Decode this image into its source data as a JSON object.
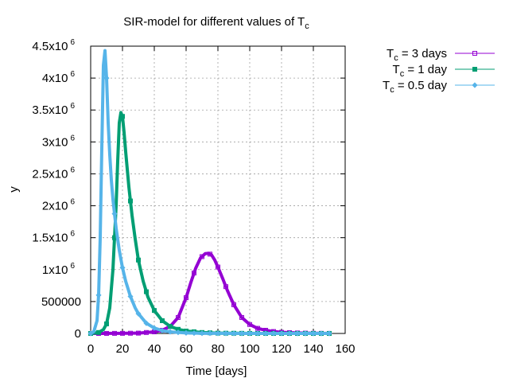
{
  "chart_data": {
    "type": "line",
    "title": "SIR-model for different values of T",
    "title_subscript": "c",
    "xlabel": "Time [days]",
    "ylabel": "y",
    "xlim": [
      0,
      160
    ],
    "ylim": [
      0,
      4500000
    ],
    "x_ticks": [
      0,
      20,
      40,
      60,
      80,
      100,
      120,
      140,
      160
    ],
    "y_ticks": [
      {
        "value": 0,
        "label": "0",
        "exp": ""
      },
      {
        "value": 500000,
        "label": "500000",
        "exp": ""
      },
      {
        "value": 1000000,
        "label": "1x10",
        "exp": "6"
      },
      {
        "value": 1500000,
        "label": "1.5x10",
        "exp": "6"
      },
      {
        "value": 2000000,
        "label": "2x10",
        "exp": "6"
      },
      {
        "value": 2500000,
        "label": "2.5x10",
        "exp": "6"
      },
      {
        "value": 3000000,
        "label": "3x10",
        "exp": "6"
      },
      {
        "value": 3500000,
        "label": "3.5x10",
        "exp": "6"
      },
      {
        "value": 4000000,
        "label": "4x10",
        "exp": "6"
      },
      {
        "value": 4500000,
        "label": "4.5x10",
        "exp": "6"
      }
    ],
    "grid": true,
    "legend_position": "outside-top-right",
    "series": [
      {
        "name_prefix": "T",
        "name_sub": "c",
        "name_suffix": " = 3 days",
        "color": "#9400d3",
        "marker": "square-open",
        "x": [
          0,
          10,
          20,
          30,
          40,
          45,
          50,
          55,
          60,
          63,
          66,
          69,
          72,
          74,
          76,
          78,
          80,
          83,
          86,
          90,
          95,
          100,
          105,
          110,
          115,
          120,
          130,
          140,
          150
        ],
        "y": [
          0,
          1000,
          2000,
          5000,
          25000,
          50000,
          110000,
          250000,
          560000,
          800000,
          1020000,
          1180000,
          1250000,
          1255000,
          1230000,
          1150000,
          1040000,
          860000,
          670000,
          450000,
          250000,
          140000,
          80000,
          50000,
          30000,
          18000,
          8000,
          3000,
          1000
        ]
      },
      {
        "name_prefix": "T",
        "name_sub": "c",
        "name_suffix": " = 1 day",
        "color": "#009e73",
        "marker": "square-filled",
        "x": [
          0,
          5,
          8,
          10,
          12,
          14,
          16,
          17,
          18,
          19,
          20,
          21,
          22,
          24,
          26,
          28,
          30,
          33,
          36,
          40,
          45,
          50,
          55,
          60,
          70,
          80,
          100,
          120,
          150
        ],
        "y": [
          0,
          15000,
          60000,
          150000,
          400000,
          1000000,
          2000000,
          2700000,
          3300000,
          3460000,
          3400000,
          3150000,
          2850000,
          2300000,
          1850000,
          1480000,
          1150000,
          820000,
          570000,
          360000,
          200000,
          110000,
          65000,
          38000,
          15000,
          5000,
          1000,
          200,
          0
        ]
      },
      {
        "name_prefix": "T",
        "name_sub": "c",
        "name_suffix": " = 0.5 day",
        "color": "#56b4e9",
        "marker": "diamond",
        "x": [
          0,
          2,
          4,
          5,
          6,
          7,
          8,
          9,
          10,
          11,
          12,
          13,
          14,
          16,
          18,
          20,
          22,
          25,
          28,
          30,
          35,
          40,
          45,
          50,
          60,
          70,
          90,
          120,
          150
        ],
        "y": [
          0,
          30000,
          200000,
          600000,
          1500000,
          2900000,
          4200000,
          4430000,
          4000000,
          3300000,
          2800000,
          2400000,
          2100000,
          1650000,
          1300000,
          1030000,
          820000,
          580000,
          400000,
          310000,
          160000,
          85000,
          45000,
          25000,
          8000,
          2500,
          500,
          50,
          0
        ]
      }
    ]
  }
}
